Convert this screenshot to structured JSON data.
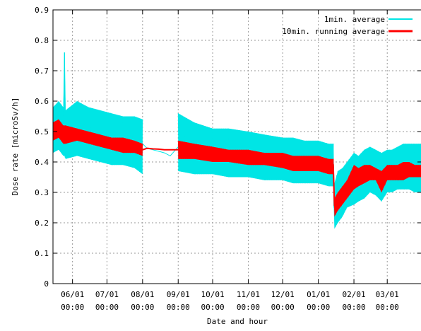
{
  "chart_data": {
    "type": "line",
    "title": "",
    "xlabel": "Date and hour",
    "ylabel": "Dose rate [microSv/h]",
    "ylim": [
      0,
      0.9
    ],
    "xlim": [
      "2011-05-15",
      "2012-03-31"
    ],
    "grid": true,
    "legend_position": "top-right",
    "y_ticks": [
      "0",
      "0.1",
      "0.2",
      "0.3",
      "0.4",
      "0.5",
      "0.6",
      "0.7",
      "0.8",
      "0.9"
    ],
    "x_ticks": [
      {
        "date": "2011-06-01",
        "line1": "06/01",
        "line2": "00:00"
      },
      {
        "date": "2011-07-01",
        "line1": "07/01",
        "line2": "00:00"
      },
      {
        "date": "2011-08-01",
        "line1": "08/01",
        "line2": "00:00"
      },
      {
        "date": "2011-09-01",
        "line1": "09/01",
        "line2": "00:00"
      },
      {
        "date": "2011-10-01",
        "line1": "10/01",
        "line2": "00:00"
      },
      {
        "date": "2011-11-01",
        "line1": "11/01",
        "line2": "00:00"
      },
      {
        "date": "2011-12-01",
        "line1": "12/01",
        "line2": "00:00"
      },
      {
        "date": "2012-01-01",
        "line1": "01/01",
        "line2": "00:00"
      },
      {
        "date": "2012-02-01",
        "line1": "02/01",
        "line2": "00:00"
      },
      {
        "date": "2012-03-01",
        "line1": "03/01",
        "line2": "00:00"
      }
    ],
    "series": [
      {
        "name": "1min. average",
        "color": "#00e5e5",
        "x": [
          "2011-05-15",
          "2011-05-20",
          "2011-05-24",
          "2011-05-25",
          "2011-05-26",
          "2011-06-05",
          "2011-06-15",
          "2011-06-25",
          "2011-07-05",
          "2011-07-15",
          "2011-07-25",
          "2011-08-01",
          "2011-08-05",
          "2011-08-10",
          "2011-08-15",
          "2011-08-20",
          "2011-08-25",
          "2011-09-01",
          "2011-09-15",
          "2011-10-01",
          "2011-10-15",
          "2011-11-01",
          "2011-11-15",
          "2011-12-01",
          "2011-12-10",
          "2011-12-20",
          "2012-01-01",
          "2012-01-10",
          "2012-01-14",
          "2012-01-15",
          "2012-01-18",
          "2012-01-22",
          "2012-01-26",
          "2012-02-01",
          "2012-02-05",
          "2012-02-10",
          "2012-02-15",
          "2012-02-20",
          "2012-02-25",
          "2012-03-01",
          "2012-03-05",
          "2012-03-10",
          "2012-03-15",
          "2012-03-20",
          "2012-03-25",
          "2012-03-31"
        ],
        "y": [
          0.51,
          0.53,
          0.5,
          0.76,
          0.49,
          0.5,
          0.49,
          0.48,
          0.47,
          0.47,
          0.46,
          0.46,
          0.445,
          0.44,
          0.435,
          0.43,
          0.42,
          0.45,
          0.44,
          0.43,
          0.425,
          0.42,
          0.41,
          0.41,
          0.4,
          0.4,
          0.4,
          0.39,
          0.39,
          0.25,
          0.26,
          0.28,
          0.3,
          0.33,
          0.34,
          0.36,
          0.37,
          0.36,
          0.35,
          0.37,
          0.36,
          0.37,
          0.37,
          0.38,
          0.37,
          0.38
        ],
        "min": [
          0.43,
          0.44,
          0.42,
          0.42,
          0.41,
          0.42,
          0.41,
          0.4,
          0.39,
          0.39,
          0.38,
          0.36,
          null,
          null,
          null,
          null,
          null,
          0.37,
          0.36,
          0.36,
          0.35,
          0.35,
          0.34,
          0.34,
          0.33,
          0.33,
          0.33,
          0.32,
          0.32,
          0.18,
          0.2,
          0.22,
          0.25,
          0.26,
          0.27,
          0.28,
          0.3,
          0.29,
          0.27,
          0.3,
          0.3,
          0.31,
          0.31,
          0.31,
          0.3,
          0.3
        ],
        "max": [
          0.58,
          0.6,
          0.58,
          0.76,
          0.57,
          0.6,
          0.58,
          0.57,
          0.56,
          0.55,
          0.55,
          0.54,
          null,
          null,
          null,
          null,
          null,
          0.56,
          0.53,
          0.51,
          0.51,
          0.5,
          0.49,
          0.48,
          0.48,
          0.47,
          0.47,
          0.46,
          0.46,
          0.33,
          0.37,
          0.38,
          0.4,
          0.43,
          0.42,
          0.44,
          0.45,
          0.44,
          0.43,
          0.44,
          0.44,
          0.45,
          0.46,
          0.46,
          0.46,
          0.46
        ]
      },
      {
        "name": "10min. running average",
        "color": "#ff0000",
        "x": [
          "2011-05-15",
          "2011-05-20",
          "2011-05-24",
          "2011-05-26",
          "2011-06-05",
          "2011-06-15",
          "2011-06-25",
          "2011-07-05",
          "2011-07-15",
          "2011-07-25",
          "2011-08-01",
          "2011-08-05",
          "2011-08-10",
          "2011-08-15",
          "2011-08-20",
          "2011-08-25",
          "2011-09-01",
          "2011-09-15",
          "2011-10-01",
          "2011-10-15",
          "2011-11-01",
          "2011-11-15",
          "2011-12-01",
          "2011-12-10",
          "2011-12-20",
          "2012-01-01",
          "2012-01-10",
          "2012-01-14",
          "2012-01-15",
          "2012-01-18",
          "2012-01-22",
          "2012-01-26",
          "2012-02-01",
          "2012-02-05",
          "2012-02-10",
          "2012-02-15",
          "2012-02-20",
          "2012-02-25",
          "2012-03-01",
          "2012-03-05",
          "2012-03-10",
          "2012-03-15",
          "2012-03-20",
          "2012-03-25",
          "2012-03-31"
        ],
        "y": [
          0.5,
          0.51,
          0.49,
          0.49,
          0.49,
          0.48,
          0.47,
          0.46,
          0.46,
          0.45,
          0.44,
          0.445,
          0.443,
          0.442,
          0.44,
          0.44,
          0.44,
          0.435,
          0.425,
          0.42,
          0.415,
          0.41,
          0.405,
          0.4,
          0.4,
          0.395,
          0.39,
          0.39,
          0.26,
          0.27,
          0.29,
          0.31,
          0.35,
          0.35,
          0.36,
          0.37,
          0.36,
          0.35,
          0.37,
          0.36,
          0.37,
          0.37,
          0.38,
          0.37,
          0.37
        ],
        "min": [
          0.47,
          0.48,
          0.46,
          0.46,
          0.47,
          0.46,
          0.45,
          0.44,
          0.43,
          0.43,
          0.42,
          null,
          null,
          null,
          null,
          null,
          0.41,
          0.41,
          0.4,
          0.4,
          0.39,
          0.39,
          0.38,
          0.37,
          0.37,
          0.37,
          0.36,
          0.36,
          0.22,
          0.24,
          0.26,
          0.28,
          0.31,
          0.32,
          0.33,
          0.34,
          0.34,
          0.3,
          0.34,
          0.34,
          0.34,
          0.34,
          0.35,
          0.35,
          0.35
        ],
        "max": [
          0.53,
          0.54,
          0.52,
          0.52,
          0.51,
          0.5,
          0.49,
          0.48,
          0.48,
          0.47,
          0.46,
          null,
          null,
          null,
          null,
          null,
          0.47,
          0.46,
          0.45,
          0.44,
          0.44,
          0.43,
          0.43,
          0.42,
          0.42,
          0.42,
          0.41,
          0.41,
          0.28,
          0.3,
          0.32,
          0.34,
          0.39,
          0.38,
          0.39,
          0.39,
          0.38,
          0.37,
          0.39,
          0.39,
          0.39,
          0.4,
          0.4,
          0.39,
          0.39
        ]
      }
    ]
  }
}
